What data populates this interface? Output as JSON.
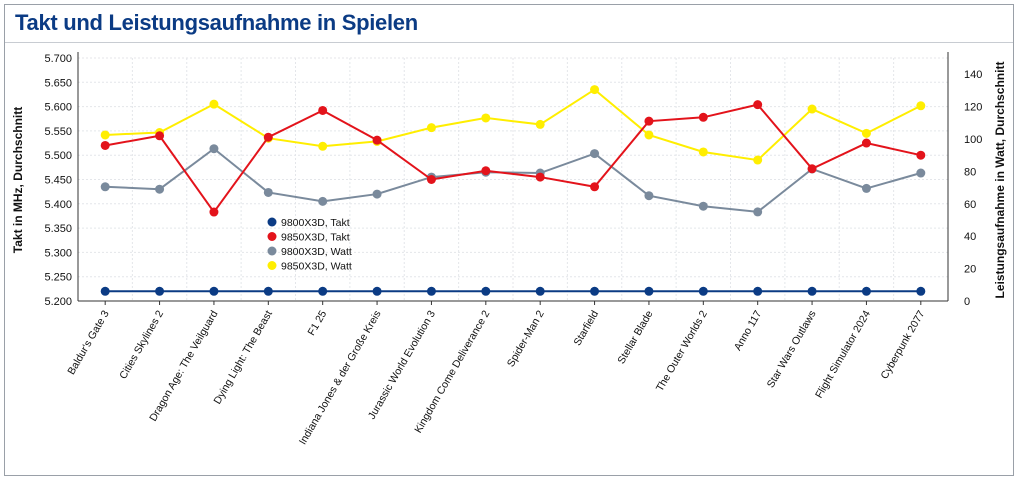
{
  "header": {
    "title": "Takt und Leistungsaufnahme in Spielen"
  },
  "chart_data": {
    "type": "line",
    "categories": [
      "Baldur's Gate 3",
      "Cities Skylines 2",
      "Dragon Age: The Veilguard",
      "Dying Light: The Beast",
      "F1 25",
      "Indiana Jones & der Große Kreis",
      "Jurassic World Evolution 3",
      "Kingdom Come Deliverance 2",
      "Spider-Man 2",
      "Starfield",
      "Stellar Blade",
      "The Outer Worlds 2",
      "Anno 117",
      "Star Wars Outlaws",
      "Flight Simulator 2024",
      "Cyberpunk 2077"
    ],
    "ylabel_left": "Takt in MHz, Durchschnitt",
    "ylabel_right": "Leistungsaufnahme in Watt, Durchschnitt",
    "ylim_left": [
      5200,
      5700
    ],
    "yticks_left": [
      "5.200",
      "5.250",
      "5.300",
      "5.350",
      "5.400",
      "5.450",
      "5.500",
      "5.550",
      "5.600",
      "5.650",
      "5.700"
    ],
    "ylim_right": [
      0,
      150
    ],
    "yticks_right": [
      "0",
      "20",
      "40",
      "60",
      "80",
      "100",
      "120",
      "140"
    ],
    "grid": true,
    "legend_position": "center-left",
    "series": [
      {
        "name": "9800X3D, Takt",
        "axis": "left",
        "color": "#0b3b84",
        "values": [
          5220,
          5220,
          5220,
          5220,
          5220,
          5220,
          5220,
          5220,
          5220,
          5220,
          5220,
          5220,
          5220,
          5220,
          5220,
          5220
        ]
      },
      {
        "name": "9850X3D, Takt",
        "axis": "left",
        "color": "#e3131b",
        "values": [
          5520,
          5540,
          5383,
          5537,
          5592,
          5531,
          5450,
          5468,
          5455,
          5435,
          5570,
          5578,
          5604,
          5472,
          5525,
          5500
        ]
      },
      {
        "name": "9800X3D, Watt",
        "axis": "right",
        "color": "#7a8a9c",
        "values": [
          70.5,
          69.0,
          94.0,
          67.0,
          61.5,
          66.0,
          76.5,
          79.5,
          79.0,
          91.0,
          65.0,
          58.5,
          55.0,
          81.5,
          69.5,
          79.0
        ]
      },
      {
        "name": "9850X3D, Watt",
        "axis": "right",
        "color": "#ffee00",
        "values": [
          102.5,
          104.0,
          121.5,
          100.5,
          95.5,
          98.5,
          107.0,
          113.0,
          109.0,
          130.5,
          102.5,
          92.0,
          87.0,
          118.5,
          103.5,
          120.5
        ]
      }
    ]
  }
}
